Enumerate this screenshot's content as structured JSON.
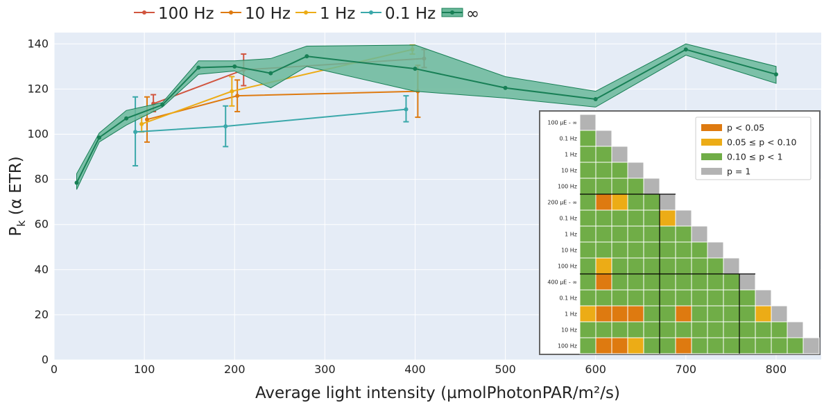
{
  "colors": {
    "plot_bg": "#e5ecf6",
    "grid": "#ffffff",
    "100 Hz": "#d1553f",
    "10 Hz": "#de7a10",
    "1 Hz": "#ecac16",
    "0.1 Hz": "#3aa8aa",
    "inf": "#177f55",
    "inf_band": "#6ab89a",
    "p_lt_005": "#de7a10",
    "p_005_010": "#ecac16",
    "p_010_1": "#70ad47",
    "p_eq_1": "#b3b3b3"
  },
  "chart_data": [
    {
      "type": "line",
      "xlabel": "Average light intensity (µmolPhotonPAR/m²/s)",
      "ylabel_main": "P",
      "ylabel_sub": "k",
      "ylabel_rest": " (α ETR)",
      "xlim": [
        0,
        850
      ],
      "ylim": [
        0,
        145
      ],
      "xticks": [
        0,
        100,
        200,
        300,
        400,
        500,
        600,
        700,
        800
      ],
      "yticks": [
        0,
        20,
        40,
        60,
        80,
        100,
        120,
        140
      ],
      "grid": true,
      "legend_position": "top",
      "series": [
        {
          "name": "100 Hz",
          "key": "100 Hz",
          "points": [
            {
              "x": 110,
              "y": 113.5,
              "lo": 110,
              "hi": 117.5
            },
            {
              "x": 210,
              "y": 128.5,
              "lo": 121.5,
              "hi": 135.5
            },
            {
              "x": 410,
              "y": 133.5,
              "lo": 129.5,
              "hi": 137.5
            }
          ]
        },
        {
          "name": "10 Hz",
          "key": "10 Hz",
          "points": [
            {
              "x": 103,
              "y": 106.5,
              "lo": 96.5,
              "hi": 116.5
            },
            {
              "x": 203,
              "y": 117,
              "lo": 110,
              "hi": 124
            },
            {
              "x": 403,
              "y": 119,
              "lo": 107.5,
              "hi": 130.5
            }
          ]
        },
        {
          "name": "1 Hz",
          "key": "1 Hz",
          "points": [
            {
              "x": 97,
              "y": 104.5,
              "lo": 101,
              "hi": 108
            },
            {
              "x": 197,
              "y": 119,
              "lo": 112.5,
              "hi": 125.5
            },
            {
              "x": 397,
              "y": 137.5,
              "lo": 135.5,
              "hi": 139.5
            }
          ]
        },
        {
          "name": "0.1 Hz",
          "key": "0.1 Hz",
          "points": [
            {
              "x": 90,
              "y": 101,
              "lo": 86,
              "hi": 116.5
            },
            {
              "x": 190,
              "y": 103.5,
              "lo": 94.5,
              "hi": 112.5
            },
            {
              "x": 390,
              "y": 111,
              "lo": 105.5,
              "hi": 117
            }
          ]
        },
        {
          "name": "∞",
          "key": "inf",
          "band": true,
          "points": [
            {
              "x": 25,
              "y": 78.5,
              "lo": 75.5,
              "hi": 82.5
            },
            {
              "x": 50,
              "y": 98.5,
              "lo": 96.5,
              "hi": 100.5
            },
            {
              "x": 80,
              "y": 107,
              "lo": 104,
              "hi": 110.5
            },
            {
              "x": 120,
              "y": 113,
              "lo": 112,
              "hi": 114
            },
            {
              "x": 160,
              "y": 129.5,
              "lo": 126.5,
              "hi": 132.5
            },
            {
              "x": 200,
              "y": 130,
              "lo": 128,
              "hi": 132.5
            },
            {
              "x": 240,
              "y": 127,
              "lo": 120.5,
              "hi": 133.5
            },
            {
              "x": 280,
              "y": 134.5,
              "lo": 130,
              "hi": 139
            },
            {
              "x": 400,
              "y": 129,
              "lo": 119,
              "hi": 139.5
            },
            {
              "x": 500,
              "y": 120.5,
              "lo": 116,
              "hi": 125.5
            },
            {
              "x": 600,
              "y": 115.5,
              "lo": 112,
              "hi": 119
            },
            {
              "x": 700,
              "y": 137.5,
              "lo": 135,
              "hi": 140
            },
            {
              "x": 800,
              "y": 126.5,
              "lo": 122.5,
              "hi": 130
            }
          ]
        }
      ]
    },
    {
      "type": "heatmap",
      "row_labels": [
        "100 µE - ∞",
        "0.1 Hz",
        "1 Hz",
        "10 Hz",
        "100 Hz",
        "200 µE - ∞",
        "0.1 Hz",
        "1 Hz",
        "10 Hz",
        "100 Hz",
        "400 µE - ∞",
        "0.1 Hz",
        "1 Hz",
        "10 Hz",
        "100 Hz"
      ],
      "legend_position": "top-right",
      "legend": [
        {
          "label": "p < 0.05",
          "key": "p_lt_005"
        },
        {
          "label": "0.05 ≤ p < 0.10",
          "key": "p_005_010"
        },
        {
          "label": "0.10 ≤ p < 1",
          "key": "p_010_1"
        },
        {
          "label": "p = 1",
          "key": "p_eq_1"
        }
      ],
      "cell_codes_legend": "0 = p < 0.05, 1 = 0.05 ≤ p < 0.10, 2 = 0.10 ≤ p < 1, 3 = p = 1",
      "cells": [
        [
          3
        ],
        [
          2,
          3
        ],
        [
          2,
          2,
          3
        ],
        [
          2,
          2,
          2,
          3
        ],
        [
          2,
          2,
          2,
          2,
          3
        ],
        [
          2,
          0,
          1,
          2,
          2,
          3
        ],
        [
          2,
          2,
          2,
          2,
          2,
          1,
          3
        ],
        [
          2,
          2,
          2,
          2,
          2,
          2,
          2,
          3
        ],
        [
          2,
          2,
          2,
          2,
          2,
          2,
          2,
          2,
          3
        ],
        [
          2,
          1,
          2,
          2,
          2,
          2,
          2,
          2,
          2,
          3
        ],
        [
          2,
          0,
          2,
          2,
          2,
          2,
          2,
          2,
          2,
          2,
          3
        ],
        [
          2,
          2,
          2,
          2,
          2,
          2,
          2,
          2,
          2,
          2,
          2,
          3
        ],
        [
          1,
          0,
          0,
          0,
          2,
          2,
          0,
          2,
          2,
          2,
          2,
          1,
          3
        ],
        [
          2,
          2,
          2,
          2,
          2,
          2,
          2,
          2,
          2,
          2,
          2,
          2,
          2,
          3
        ],
        [
          2,
          0,
          0,
          1,
          2,
          2,
          0,
          2,
          2,
          2,
          2,
          2,
          2,
          2,
          3
        ]
      ]
    }
  ]
}
